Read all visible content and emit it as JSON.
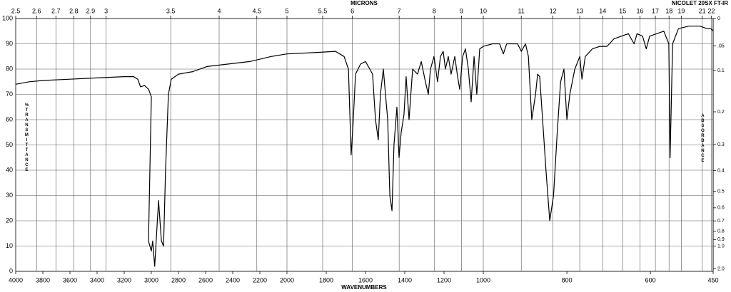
{
  "chart_data": {
    "type": "line",
    "top_axis_label": "MICRONS",
    "instrument": "NICOLET 20SX FT-IR",
    "xlabel": "WAVENUMBERS",
    "ylabel": "%TRANSMITTANCE",
    "y2label": "ABSORBANCE",
    "xlim": [
      4000,
      450
    ],
    "xticks": [
      4000,
      3800,
      3600,
      3400,
      3200,
      3000,
      2800,
      2600,
      2400,
      2200,
      2000,
      1800,
      1600,
      1400,
      1200,
      1000,
      800,
      600,
      450
    ],
    "ylim": [
      0,
      100
    ],
    "yticks": [
      0,
      10,
      20,
      30,
      40,
      50,
      60,
      70,
      80,
      90,
      100
    ],
    "micron_ticks": [
      2.5,
      2.6,
      2.7,
      2.8,
      2.9,
      3,
      3.5,
      4,
      4.5,
      5,
      5.5,
      6,
      7,
      8,
      9,
      10,
      11,
      12,
      13,
      14,
      15,
      16,
      17,
      18,
      19,
      21,
      22
    ],
    "absorbance_ticks": [
      0,
      {
        "value": 0.05,
        "label": ".05"
      },
      0.1,
      0.2,
      0.3,
      0.4,
      0.5,
      0.6,
      0.7,
      0.8,
      0.9,
      {
        "value": 1.0,
        "label": "1.0"
      },
      {
        "value": 2.0,
        "label": "2.0"
      }
    ],
    "grid": true,
    "x": [
      4000,
      3900,
      3800,
      3600,
      3400,
      3200,
      3130,
      3100,
      3080,
      3050,
      3020,
      3000,
      3021,
      3000,
      2990,
      2975,
      2947,
      2926,
      2910,
      2895,
      2874,
      2853,
      2800,
      2695,
      2590,
      2432,
      2274,
      2116,
      2000,
      1862,
      1753,
      1709,
      1687,
      1673,
      1662,
      1651,
      1625,
      1600,
      1578,
      1564,
      1549,
      1535,
      1524,
      1509,
      1498,
      1487,
      1476,
      1465,
      1455,
      1440,
      1429,
      1418,
      1404,
      1393,
      1378,
      1360,
      1335,
      1316,
      1295,
      1280,
      1269,
      1251,
      1233,
      1218,
      1204,
      1193,
      1178,
      1164,
      1145,
      1131,
      1120,
      1105,
      1091,
      1076,
      1062,
      1047,
      1033,
      1018,
      1000,
      978,
      961,
      952,
      944,
      918,
      909,
      899,
      892,
      884,
      875,
      870,
      865,
      858,
      850,
      841,
      832,
      823,
      815,
      807,
      800,
      793,
      781,
      769,
      764,
      756,
      739,
      721,
      704,
      687,
      653,
      639,
      632,
      619,
      610,
      602,
      585,
      568,
      556,
      553,
      547,
      533,
      508,
      482,
      465,
      455,
      450
    ],
    "series": [
      {
        "name": "spectrum",
        "color": "#000000",
        "values": [
          74,
          75,
          75.5,
          76,
          76.5,
          77,
          77,
          76,
          73,
          73.5,
          72,
          69,
          12,
          8,
          12,
          2,
          28,
          12,
          10,
          40,
          70,
          76,
          78,
          79,
          81,
          82,
          83,
          85,
          86,
          86.5,
          87,
          85,
          80,
          46,
          60,
          78,
          82,
          83,
          80,
          78,
          60,
          52,
          70,
          80,
          70,
          60,
          30,
          24,
          50,
          65,
          45,
          55,
          62,
          77,
          60,
          80,
          78,
          83,
          75,
          70,
          80,
          85,
          75,
          85,
          87,
          80,
          85,
          78,
          85,
          77,
          72,
          85,
          88,
          80,
          67,
          85,
          70,
          88,
          89,
          90,
          90,
          86,
          90,
          90,
          87,
          90,
          85,
          60,
          70,
          78,
          77,
          60,
          40,
          20,
          30,
          55,
          75,
          80,
          60,
          70,
          80,
          85,
          76,
          85,
          88,
          89,
          89,
          92,
          94,
          90,
          94,
          93,
          88,
          93,
          94,
          95,
          90,
          45,
          90,
          96,
          97,
          97,
          96,
          96,
          95
        ]
      }
    ]
  }
}
